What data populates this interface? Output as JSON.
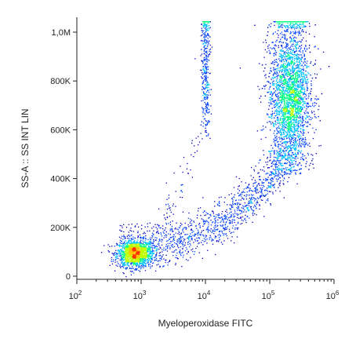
{
  "chart_data": {
    "type": "scatter",
    "subtype": "flow-cytometry-density-dot-plot",
    "xlabel": "Myeloperoxidase FITC",
    "ylabel": "SS-A :: SS INT LIN",
    "x_scale": "log",
    "xlim": [
      100,
      1000000
    ],
    "ylim": [
      0,
      1048576
    ],
    "x_ticks": [
      {
        "value": 100,
        "label": "10",
        "exp": "2"
      },
      {
        "value": 1000,
        "label": "10",
        "exp": "3"
      },
      {
        "value": 10000,
        "label": "10",
        "exp": "4"
      },
      {
        "value": 100000,
        "label": "10",
        "exp": "5"
      },
      {
        "value": 1000000,
        "label": "10",
        "exp": "6"
      }
    ],
    "y_ticks": [
      {
        "value": 0,
        "label": "0"
      },
      {
        "value": 200000,
        "label": "200K"
      },
      {
        "value": 400000,
        "label": "400K"
      },
      {
        "value": 600000,
        "label": "600K"
      },
      {
        "value": 800000,
        "label": "800K"
      },
      {
        "value": 1000000,
        "label": "1,0M"
      }
    ],
    "populations": [
      {
        "description": "low signal cluster",
        "x_center": 800,
        "y_center": 95000,
        "x_spread_decades": 0.14,
        "y_spread": 28000,
        "events": 1500
      },
      {
        "description": "high signal cluster",
        "x_center": 200000,
        "y_center": 740000,
        "x_spread_decades": 0.16,
        "y_spread": 150000,
        "events": 3500
      },
      {
        "description": "transition band",
        "x_range": [
          3000,
          200000
        ],
        "y_range": [
          150000,
          500000
        ],
        "events": 1000
      },
      {
        "description": "vertical streak",
        "x_center": 10000,
        "y_range": [
          550000,
          1040000
        ],
        "events": 350
      }
    ],
    "color_scale": [
      "#0000c0",
      "#0040ff",
      "#00c0ff",
      "#00ff80",
      "#c0ff00",
      "#ffc000",
      "#ff3000"
    ],
    "grid": false
  }
}
